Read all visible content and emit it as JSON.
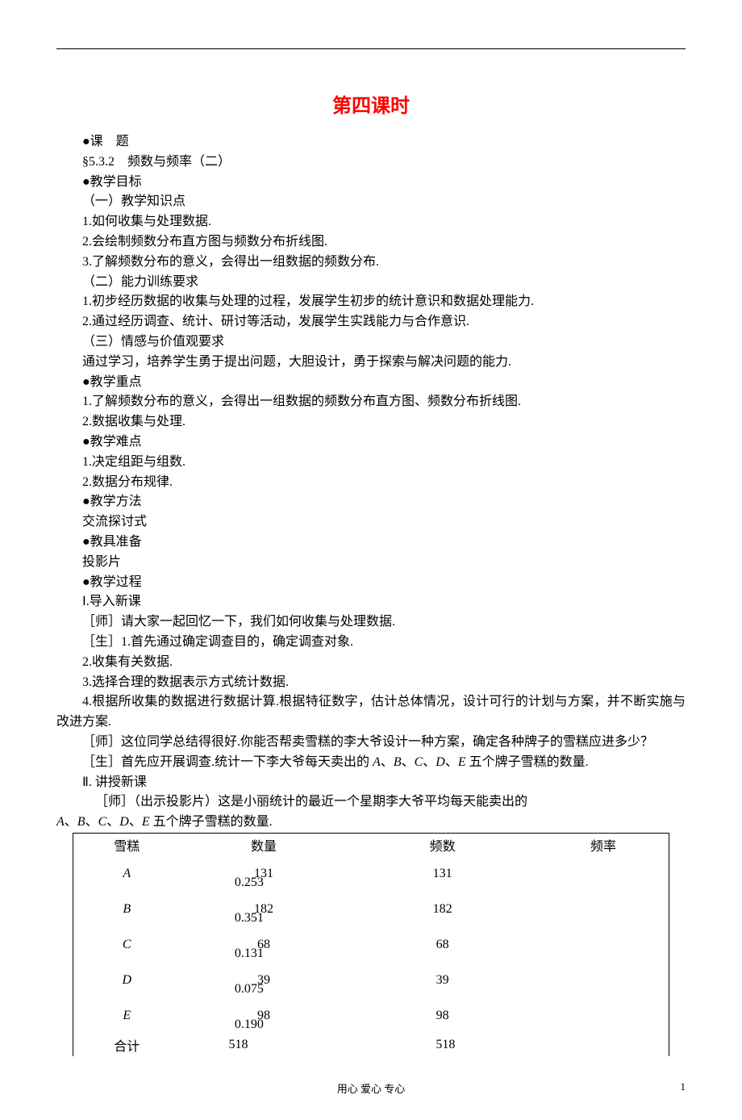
{
  "colors": {
    "title": "#ff0000",
    "text": "#000000",
    "background": "#ffffff",
    "rule": "#000000"
  },
  "typography": {
    "title_fontsize": 24,
    "title_font": "SimHei",
    "body_fontsize": 16,
    "body_font": "SimSun",
    "footer_fontsize": 13,
    "line_height": 1.55
  },
  "title": "第四课时",
  "lines": [
    {
      "text": "●课　题",
      "indent": 1
    },
    {
      "text": "§5.3.2　频数与频率（二）",
      "indent": 1
    },
    {
      "text": "●教学目标",
      "indent": 1
    },
    {
      "text": "（一）教学知识点",
      "indent": 1
    },
    {
      "text": "1.如何收集与处理数据.",
      "indent": 1
    },
    {
      "text": "2.会绘制频数分布直方图与频数分布折线图.",
      "indent": 1
    },
    {
      "text": "3.了解频数分布的意义，会得出一组数据的频数分布.",
      "indent": 1
    },
    {
      "text": "（二）能力训练要求",
      "indent": 1
    },
    {
      "text": "1.初步经历数据的收集与处理的过程，发展学生初步的统计意识和数据处理能力.",
      "indent": 1
    },
    {
      "text": "2.通过经历调查、统计、研讨等活动，发展学生实践能力与合作意识.",
      "indent": 1
    },
    {
      "text": "（三）情感与价值观要求",
      "indent": 1
    },
    {
      "text": "通过学习，培养学生勇于提出问题，大胆设计，勇于探索与解决问题的能力.",
      "indent": 1
    },
    {
      "text": "●教学重点",
      "indent": 1
    },
    {
      "text": "1.了解频数分布的意义，会得出一组数据的频数分布直方图、频数分布折线图.",
      "indent": 1
    },
    {
      "text": "2.数据收集与处理.",
      "indent": 1
    },
    {
      "text": "●教学难点",
      "indent": 1
    },
    {
      "text": "1.决定组距与组数.",
      "indent": 1
    },
    {
      "text": "2.数据分布规律.",
      "indent": 1
    },
    {
      "text": "●教学方法",
      "indent": 1
    },
    {
      "text": "交流探讨式",
      "indent": 1
    },
    {
      "text": "●教具准备",
      "indent": 1
    },
    {
      "text": "投影片",
      "indent": 1
    },
    {
      "text": "●教学过程",
      "indent": 1
    },
    {
      "text": "Ⅰ.导入新课",
      "indent": 1
    },
    {
      "text": "［师］请大家一起回忆一下，我们如何收集与处理数据.",
      "indent": 1
    },
    {
      "text": "［生］1.首先通过确定调查目的，确定调查对象.",
      "indent": 1
    },
    {
      "text": "2.收集有关数据.",
      "indent": 1
    },
    {
      "text": "3.选择合理的数据表示方式统计数据.",
      "indent": 1
    },
    {
      "text": "4.根据所收集的数据进行数据计算.根据特征数字，估计总体情况，设计可行的计划与方案，并不断实施与改进方案.",
      "indent": 2,
      "hang": true
    },
    {
      "text": "［师］这位同学总结得很好.你能否帮卖雪糕的李大爷设计一种方案，确定各种牌子的雪糕应进多少？",
      "indent": 2,
      "hang": true
    },
    {
      "text_html": "［生］首先应开展调查.统计一下李大爷每天卖出的 <span class='italic-letter'>A</span>、<span class='italic-letter'>B</span>、<span class='italic-letter'>C</span>、<span class='italic-letter'>D</span>、<span class='italic-letter'>E</span> 五个牌子雪糕的数量.",
      "indent": 2,
      "hang2": true
    },
    {
      "text": "Ⅱ. 讲授新课",
      "indent": 1
    },
    {
      "text": "［师］（出示投影片）这是小丽统计的最近一个星期李大爷平均每天能卖出的",
      "indent": 2
    },
    {
      "text_html": "<span class='italic-letter'>A</span>、<span class='italic-letter'>B</span>、<span class='italic-letter'>C</span>、<span class='italic-letter'>D</span>、<span class='italic-letter'>E</span> 五个牌子雪糕的数量.",
      "indent": 0
    }
  ],
  "table": {
    "headers": [
      "雪糕",
      "数量",
      "频数",
      "频率"
    ],
    "rows": [
      {
        "brand": "A",
        "qty": "131",
        "freq": "131",
        "rate": "0.253"
      },
      {
        "brand": "B",
        "qty": "182",
        "freq": "182",
        "rate": "0.351"
      },
      {
        "brand": "C",
        "qty": "68",
        "freq": "68",
        "rate": "0.131"
      },
      {
        "brand": "D",
        "qty": "39",
        "freq": "39",
        "rate": "0.075"
      },
      {
        "brand": "E",
        "qty": "98",
        "freq": "98",
        "rate": "0.190"
      }
    ],
    "total_label": "合计",
    "total_qty": "518",
    "total_freq": "518",
    "col_widths_pct": [
      18,
      28,
      32,
      22
    ]
  },
  "footer": {
    "motto": "用心 爱心 专心",
    "page_number": "1"
  }
}
